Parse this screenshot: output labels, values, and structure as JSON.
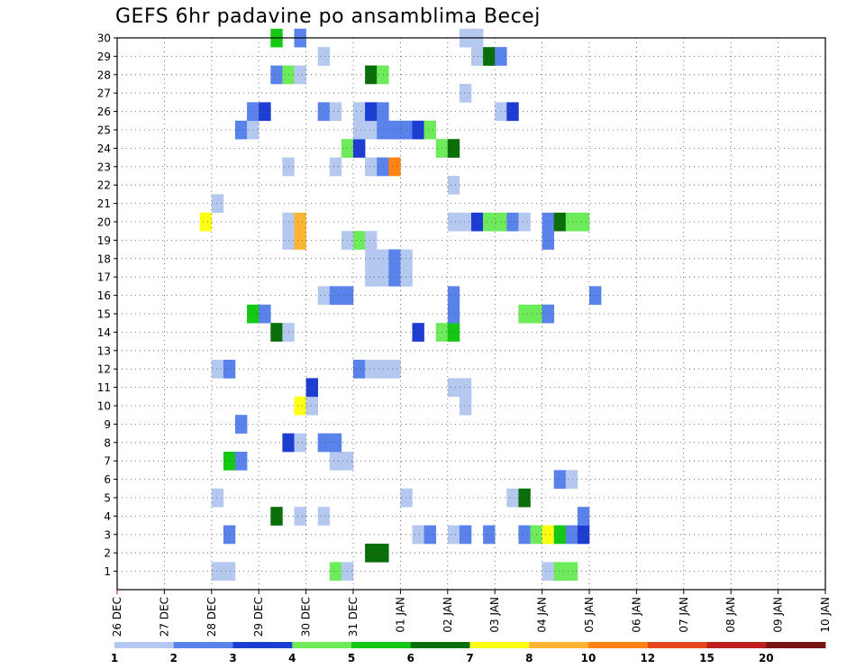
{
  "chart_data": {
    "type": "heatmap",
    "title": "GEFS 6hr padavine po ansamblima Becej",
    "xlabel": "",
    "ylabel": "",
    "x_tick_labels": [
      "26 DEC",
      "27 DEC",
      "28 DEC",
      "29 DEC",
      "30 DEC",
      "31 DEC",
      "01 JAN",
      "02 JAN",
      "03 JAN",
      "04 JAN",
      "05 JAN",
      "06 JAN",
      "07 JAN",
      "08 JAN",
      "09 JAN",
      "10 JAN"
    ],
    "x_step_hours": 6,
    "y_tick_labels": [
      1,
      2,
      3,
      4,
      5,
      6,
      7,
      8,
      9,
      10,
      11,
      12,
      13,
      14,
      15,
      16,
      17,
      18,
      19,
      20,
      21,
      22,
      23,
      24,
      25,
      26,
      27,
      28,
      29,
      30
    ],
    "grid": true,
    "colorbar": {
      "labels": [
        "1",
        "2",
        "3",
        "4",
        "5",
        "6",
        "7",
        "8",
        "10",
        "12",
        "15",
        "20"
      ],
      "colors": [
        "#b4c8f0",
        "#5a82eb",
        "#1c3cd2",
        "#6eeb5a",
        "#14c814",
        "#0a6e0a",
        "#ffff14",
        "#ffb432",
        "#ff8214",
        "#e6461e",
        "#be1e1e",
        "#781414"
      ]
    },
    "series": [
      {
        "member": 1,
        "cells": [
          [
            2.0,
            0
          ],
          [
            2.25,
            0
          ],
          [
            4.5,
            3
          ],
          [
            4.75,
            0
          ],
          [
            9.0,
            0
          ],
          [
            9.25,
            3
          ],
          [
            9.5,
            3
          ]
        ]
      },
      {
        "member": 2,
        "cells": [
          [
            5.25,
            5
          ],
          [
            5.5,
            5
          ]
        ]
      },
      {
        "member": 3,
        "cells": [
          [
            2.25,
            1
          ],
          [
            6.25,
            0
          ],
          [
            6.5,
            1
          ],
          [
            7.0,
            0
          ],
          [
            7.25,
            1
          ],
          [
            7.75,
            1
          ],
          [
            8.5,
            1
          ],
          [
            8.75,
            3
          ],
          [
            9.0,
            6
          ],
          [
            9.25,
            4
          ],
          [
            9.5,
            1
          ],
          [
            9.75,
            2
          ]
        ]
      },
      {
        "member": 4,
        "cells": [
          [
            3.25,
            5
          ],
          [
            3.75,
            0
          ],
          [
            4.25,
            0
          ],
          [
            9.75,
            1
          ]
        ]
      },
      {
        "member": 5,
        "cells": [
          [
            2.0,
            0
          ],
          [
            6.0,
            0
          ],
          [
            8.25,
            0
          ],
          [
            8.5,
            5
          ]
        ]
      },
      {
        "member": 6,
        "cells": [
          [
            9.25,
            1
          ],
          [
            9.5,
            0
          ]
        ]
      },
      {
        "member": 7,
        "cells": [
          [
            2.25,
            4
          ],
          [
            2.5,
            1
          ],
          [
            4.5,
            0
          ],
          [
            4.75,
            0
          ]
        ]
      },
      {
        "member": 8,
        "cells": [
          [
            3.5,
            2
          ],
          [
            3.75,
            0
          ],
          [
            4.25,
            1
          ],
          [
            4.5,
            1
          ]
        ]
      },
      {
        "member": 9,
        "cells": [
          [
            2.5,
            1
          ]
        ]
      },
      {
        "member": 10,
        "cells": [
          [
            3.75,
            6
          ],
          [
            4.0,
            0
          ],
          [
            7.25,
            0
          ]
        ]
      },
      {
        "member": 11,
        "cells": [
          [
            4.0,
            2
          ],
          [
            7.0,
            0
          ],
          [
            7.25,
            0
          ]
        ]
      },
      {
        "member": 12,
        "cells": [
          [
            2.0,
            0
          ],
          [
            2.25,
            1
          ],
          [
            5.0,
            1
          ],
          [
            5.25,
            0
          ],
          [
            5.5,
            0
          ],
          [
            5.75,
            0
          ]
        ]
      },
      {
        "member": 14,
        "cells": [
          [
            3.25,
            5
          ],
          [
            3.5,
            0
          ],
          [
            6.25,
            2
          ],
          [
            6.75,
            3
          ],
          [
            7.0,
            4
          ]
        ]
      },
      {
        "member": 15,
        "cells": [
          [
            2.75,
            4
          ],
          [
            3.0,
            1
          ],
          [
            7.0,
            1
          ],
          [
            8.5,
            3
          ],
          [
            8.75,
            3
          ],
          [
            9.0,
            1
          ]
        ]
      },
      {
        "member": 16,
        "cells": [
          [
            4.25,
            0
          ],
          [
            4.5,
            1
          ],
          [
            4.75,
            1
          ],
          [
            7.0,
            1
          ],
          [
            10.0,
            1
          ]
        ]
      },
      {
        "member": 17,
        "cells": [
          [
            5.25,
            0
          ],
          [
            5.5,
            0
          ],
          [
            5.75,
            1
          ],
          [
            6.0,
            0
          ]
        ]
      },
      {
        "member": 18,
        "cells": [
          [
            5.25,
            0
          ],
          [
            5.5,
            0
          ],
          [
            5.75,
            1
          ],
          [
            6.0,
            0
          ]
        ]
      },
      {
        "member": 19,
        "cells": [
          [
            3.5,
            0
          ],
          [
            3.75,
            7
          ],
          [
            4.75,
            0
          ],
          [
            5.0,
            3
          ],
          [
            5.25,
            0
          ],
          [
            9.0,
            1
          ]
        ]
      },
      {
        "member": 20,
        "cells": [
          [
            1.75,
            6
          ],
          [
            3.5,
            0
          ],
          [
            3.75,
            7
          ],
          [
            7.0,
            0
          ],
          [
            7.25,
            0
          ],
          [
            7.5,
            2
          ],
          [
            7.75,
            3
          ],
          [
            8.0,
            3
          ],
          [
            8.25,
            1
          ],
          [
            8.5,
            0
          ],
          [
            9.0,
            1
          ],
          [
            9.25,
            5
          ],
          [
            9.5,
            3
          ],
          [
            9.75,
            3
          ]
        ]
      },
      {
        "member": 21,
        "cells": [
          [
            2.0,
            0
          ]
        ]
      },
      {
        "member": 22,
        "cells": [
          [
            7.0,
            0
          ]
        ]
      },
      {
        "member": 23,
        "cells": [
          [
            3.5,
            0
          ],
          [
            4.5,
            0
          ],
          [
            5.25,
            0
          ],
          [
            5.5,
            1
          ],
          [
            5.75,
            8
          ]
        ]
      },
      {
        "member": 24,
        "cells": [
          [
            4.75,
            3
          ],
          [
            5.0,
            2
          ],
          [
            6.75,
            3
          ],
          [
            7.0,
            5
          ]
        ]
      },
      {
        "member": 25,
        "cells": [
          [
            2.5,
            1
          ],
          [
            2.75,
            0
          ],
          [
            5.0,
            0
          ],
          [
            5.25,
            0
          ],
          [
            5.5,
            1
          ],
          [
            5.75,
            1
          ],
          [
            6.0,
            1
          ],
          [
            6.25,
            2
          ],
          [
            6.5,
            3
          ]
        ]
      },
      {
        "member": 26,
        "cells": [
          [
            2.75,
            1
          ],
          [
            3.0,
            2
          ],
          [
            4.25,
            1
          ],
          [
            4.5,
            0
          ],
          [
            5.0,
            0
          ],
          [
            5.25,
            2
          ],
          [
            5.5,
            1
          ],
          [
            8.0,
            0
          ],
          [
            8.25,
            2
          ]
        ]
      },
      {
        "member": 27,
        "cells": [
          [
            7.25,
            0
          ]
        ]
      },
      {
        "member": 28,
        "cells": [
          [
            3.25,
            1
          ],
          [
            3.5,
            3
          ],
          [
            3.75,
            0
          ],
          [
            5.25,
            5
          ],
          [
            5.5,
            3
          ]
        ]
      },
      {
        "member": 29,
        "cells": [
          [
            4.25,
            0
          ],
          [
            7.5,
            0
          ],
          [
            7.75,
            5
          ],
          [
            8.0,
            1
          ]
        ]
      },
      {
        "member": 30,
        "cells": [
          [
            3.25,
            4
          ],
          [
            3.75,
            1
          ],
          [
            7.25,
            0
          ],
          [
            7.5,
            0
          ]
        ]
      }
    ]
  }
}
